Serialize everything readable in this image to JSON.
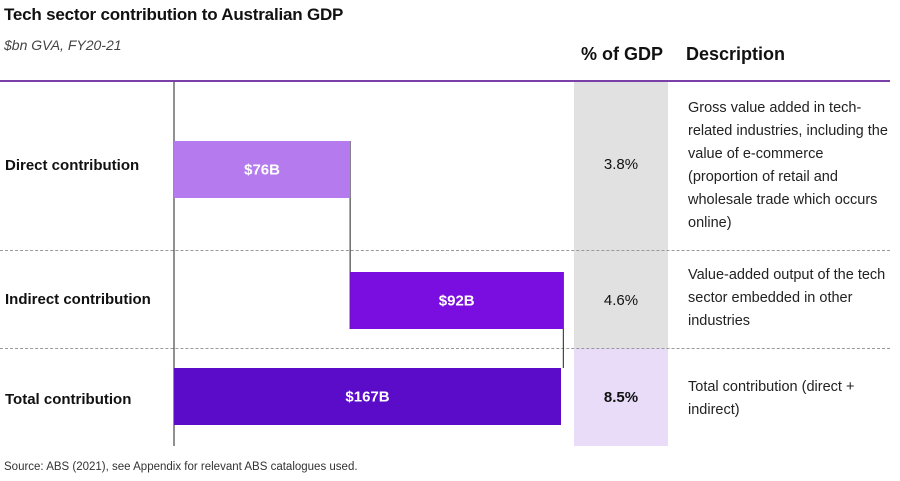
{
  "header": {
    "title": "Tech sector contribution to Australian GDP",
    "subtitle": "$bn GVA, FY20-21",
    "col_gdp": "% of GDP",
    "col_desc": "Description"
  },
  "rows": [
    {
      "label": "Direct contribution",
      "gdp": "3.8%",
      "description": "Gross value added in tech-related industries, including the value of e-commerce (proportion of retail and wholesale trade which occurs online)"
    },
    {
      "label": "Indirect contribution",
      "gdp": "4.6%",
      "description": "Value-added output of the tech sector embedded in other industries"
    },
    {
      "label": "Total contribution",
      "gdp": "8.5%",
      "description": "Total contribution (direct + indirect)"
    }
  ],
  "source": "Source: ABS (2021), see Appendix for relevant ABS catalogues used.",
  "chart_data": {
    "type": "bar",
    "subtype": "waterfall",
    "categories": [
      "Direct contribution",
      "Indirect contribution",
      "Total contribution"
    ],
    "values": [
      76,
      92,
      167
    ],
    "bar_labels": [
      "$76B",
      "$92B",
      "$167B"
    ],
    "unit": "$bn GVA",
    "colors": [
      "#b57bee",
      "#7a0ee0",
      "#5a0cc8"
    ]
  },
  "colors": {
    "accent_line": "#7b3fa8",
    "gdp_bg": "#e1e1e1",
    "gdp_total_bg": "#e8dcf9"
  }
}
